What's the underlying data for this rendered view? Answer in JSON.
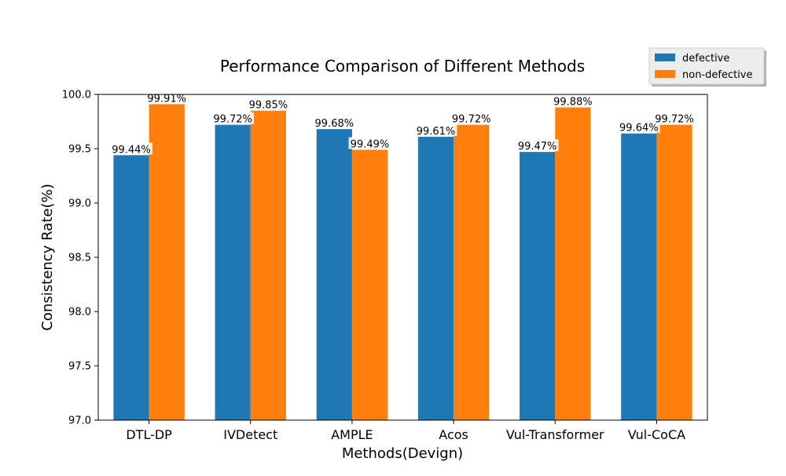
{
  "chart_data": {
    "type": "bar",
    "title": "Performance Comparison of Different Methods",
    "xlabel": "Methods(Devign)",
    "ylabel": "Consistency Rate(%)",
    "categories": [
      "DTL-DP",
      "IVDetect",
      "AMPLE",
      "Acos",
      "Vul-Transformer",
      "Vul-CoCA"
    ],
    "series": [
      {
        "name": "defective",
        "color": "#1f77b4",
        "values": [
          99.44,
          99.72,
          99.68,
          99.61,
          99.47,
          99.64
        ],
        "labels": [
          "99.44%",
          "99.72%",
          "99.68%",
          "99.61%",
          "99.47%",
          "99.64%"
        ]
      },
      {
        "name": "non-defective",
        "color": "#ff7f0e",
        "values": [
          99.91,
          99.85,
          99.49,
          99.72,
          99.88,
          99.72
        ],
        "labels": [
          "99.91%",
          "99.85%",
          "99.49%",
          "99.72%",
          "99.88%",
          "99.72%"
        ]
      }
    ],
    "ylim": [
      97.0,
      100.0
    ],
    "yticks": [
      "97.0",
      "97.5",
      "98.0",
      "98.5",
      "99.0",
      "99.5",
      "100.0"
    ],
    "grid": false,
    "legend_position": "top-right"
  }
}
